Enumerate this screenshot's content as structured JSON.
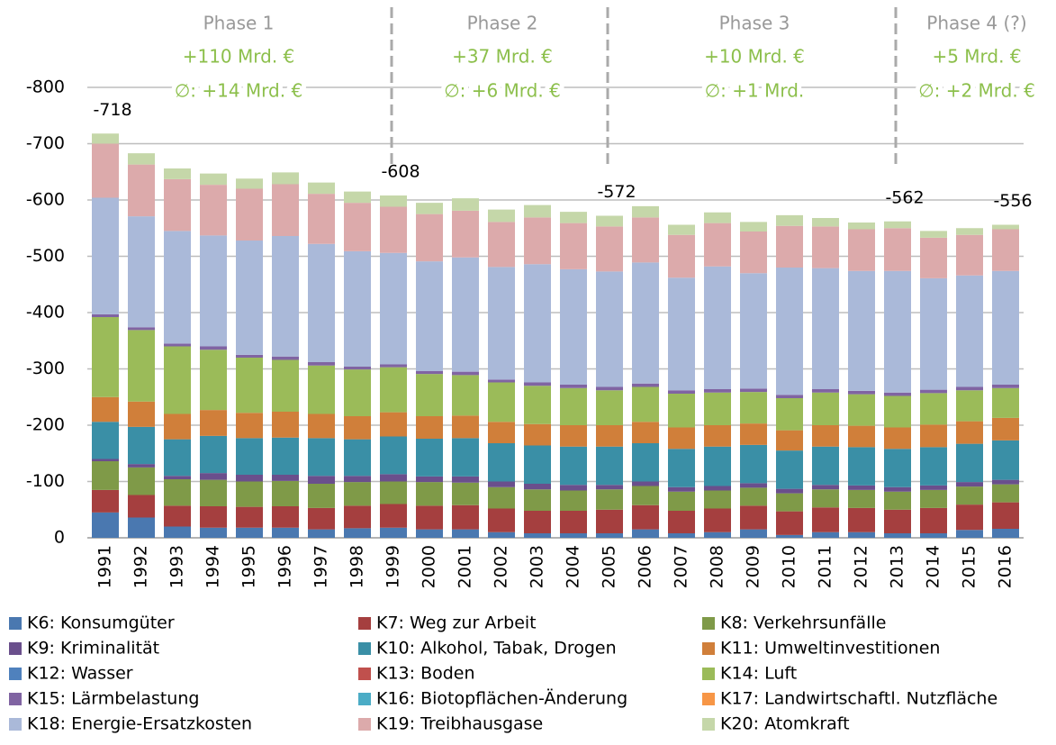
{
  "chart_data": {
    "type": "stacked_bar",
    "categories": [
      "1991",
      "1992",
      "1993",
      "1994",
      "1995",
      "1996",
      "1997",
      "1998",
      "1999",
      "2000",
      "2001",
      "2002",
      "2003",
      "2004",
      "2005",
      "2006",
      "2007",
      "2008",
      "2009",
      "2010",
      "2011",
      "2012",
      "2013",
      "2014",
      "2015",
      "2016"
    ],
    "ylim": [
      0,
      -800
    ],
    "yticks": [
      0,
      -100,
      -200,
      -300,
      -400,
      -500,
      -600,
      -700,
      -800
    ],
    "grid": true,
    "series": [
      {
        "name": "K6: Konsumgüter",
        "color": "#4a78b0",
        "values": [
          -45,
          -36,
          -20,
          -18,
          -18,
          -18,
          -15,
          -17,
          -18,
          -15,
          -15,
          -10,
          -8,
          -8,
          -8,
          -15,
          -8,
          -10,
          -15,
          -5,
          -10,
          -10,
          -8,
          -8,
          -14,
          -16
        ]
      },
      {
        "name": "K7: Weg zur Arbeit",
        "color": "#a53f3f",
        "values": [
          -40,
          -40,
          -37,
          -38,
          -37,
          -38,
          -38,
          -40,
          -42,
          -42,
          -43,
          -42,
          -40,
          -40,
          -42,
          -43,
          -40,
          -42,
          -42,
          -42,
          -44,
          -43,
          -42,
          -45,
          -45,
          -47
        ]
      },
      {
        "name": "K8: Verkehrsunfälle",
        "color": "#7f9a48",
        "values": [
          -51,
          -49,
          -47,
          -47,
          -45,
          -45,
          -43,
          -42,
          -40,
          -42,
          -40,
          -38,
          -38,
          -36,
          -36,
          -34,
          -34,
          -32,
          -32,
          -32,
          -32,
          -32,
          -32,
          -32,
          -32,
          -32
        ]
      },
      {
        "name": "K9: Kriminalität",
        "color": "#6a4f8c",
        "values": [
          -4,
          -6,
          -6,
          -12,
          -12,
          -11,
          -14,
          -11,
          -13,
          -10,
          -11,
          -10,
          -10,
          -10,
          -8,
          -8,
          -8,
          -8,
          -8,
          -8,
          -8,
          -8,
          -8,
          -8,
          -8,
          -8
        ]
      },
      {
        "name": "K10: Alkohol, Tabak, Drogen",
        "color": "#3a8fa6",
        "values": [
          -66,
          -66,
          -65,
          -66,
          -65,
          -66,
          -67,
          -65,
          -67,
          -67,
          -68,
          -68,
          -68,
          -68,
          -68,
          -68,
          -68,
          -70,
          -68,
          -68,
          -68,
          -68,
          -68,
          -68,
          -68,
          -70
        ]
      },
      {
        "name": "K11: Umweltinvestitionen",
        "color": "#d07f3a",
        "values": [
          -44,
          -45,
          -45,
          -46,
          -45,
          -46,
          -43,
          -41,
          -43,
          -40,
          -40,
          -38,
          -38,
          -38,
          -38,
          -38,
          -38,
          -38,
          -38,
          -36,
          -38,
          -38,
          -38,
          -40,
          -40,
          -40
        ]
      },
      {
        "name": "K12: Wasser",
        "color": "#4f81bd",
        "values": [
          0,
          0,
          0,
          0,
          0,
          0,
          0,
          0,
          0,
          0,
          0,
          0,
          0,
          0,
          0,
          0,
          0,
          0,
          0,
          0,
          0,
          0,
          0,
          0,
          0,
          0
        ]
      },
      {
        "name": "K13: Boden",
        "color": "#c0504d",
        "values": [
          0,
          0,
          0,
          0,
          0,
          0,
          0,
          0,
          0,
          0,
          0,
          0,
          0,
          0,
          0,
          0,
          0,
          0,
          0,
          0,
          0,
          0,
          0,
          0,
          0,
          0
        ]
      },
      {
        "name": "K14: Luft",
        "color": "#9bbb59",
        "values": [
          -142,
          -127,
          -120,
          -107,
          -98,
          -92,
          -86,
          -83,
          -80,
          -75,
          -72,
          -70,
          -68,
          -66,
          -62,
          -62,
          -60,
          -58,
          -56,
          -57,
          -58,
          -56,
          -56,
          -56,
          -55,
          -53
        ]
      },
      {
        "name": "K15: Lärmbelastung",
        "color": "#8064a2",
        "values": [
          -5,
          -5,
          -5,
          -6,
          -5,
          -6,
          -6,
          -5,
          -5,
          -5,
          -6,
          -5,
          -6,
          -6,
          -6,
          -6,
          -6,
          -6,
          -6,
          -6,
          -6,
          -6,
          -6,
          -6,
          -6,
          -6
        ]
      },
      {
        "name": "K16: Biotopflächen-Änderung",
        "color": "#4bacc6",
        "values": [
          0,
          0,
          0,
          0,
          0,
          0,
          0,
          0,
          0,
          0,
          0,
          0,
          0,
          0,
          0,
          0,
          0,
          0,
          0,
          0,
          0,
          0,
          0,
          0,
          0,
          0
        ]
      },
      {
        "name": "K17: Landwirtschaftl. Nutzfläche",
        "color": "#f79646",
        "values": [
          0,
          0,
          0,
          0,
          0,
          0,
          0,
          0,
          0,
          0,
          0,
          0,
          0,
          0,
          0,
          0,
          0,
          0,
          0,
          0,
          0,
          0,
          0,
          0,
          0,
          0
        ]
      },
      {
        "name": "K18: Energie-Ersatzkosten",
        "color": "#aab9d9",
        "values": [
          -207,
          -197,
          -200,
          -197,
          -203,
          -214,
          -210,
          -205,
          -198,
          -195,
          -203,
          -200,
          -210,
          -205,
          -205,
          -215,
          -200,
          -218,
          -205,
          -226,
          -215,
          -213,
          -216,
          -198,
          -198,
          -202
        ]
      },
      {
        "name": "K19: Treibhausgase",
        "color": "#dcaaab",
        "values": [
          -96,
          -92,
          -92,
          -90,
          -92,
          -92,
          -89,
          -86,
          -82,
          -84,
          -83,
          -80,
          -83,
          -82,
          -80,
          -80,
          -76,
          -77,
          -74,
          -74,
          -74,
          -74,
          -76,
          -72,
          -72,
          -74
        ]
      },
      {
        "name": "K20: Atomkraft",
        "color": "#c5d7a9",
        "values": [
          -18,
          -20,
          -19,
          -20,
          -18,
          -21,
          -20,
          -20,
          -20,
          -20,
          -22,
          -22,
          -22,
          -20,
          -19,
          -20,
          -18,
          -19,
          -17,
          -19,
          -15,
          -12,
          -12,
          -12,
          -12,
          -8
        ]
      }
    ],
    "annotations": [
      {
        "category": "1991",
        "value": -718
      },
      {
        "category": "1999",
        "value": -608
      },
      {
        "category": "2005",
        "value": -572
      },
      {
        "category": "2013",
        "value": -562
      },
      {
        "category": "2016",
        "value": -556
      }
    ],
    "phases": [
      {
        "label": "Phase 1",
        "total": "+110 Mrd. €",
        "average": "∅: +14 Mrd. €"
      },
      {
        "label": "Phase 2",
        "total": "+37 Mrd. €",
        "average": "∅: +6 Mrd. €"
      },
      {
        "label": "Phase 3",
        "total": "+10 Mrd. €",
        "average": "∅: +1 Mrd."
      },
      {
        "label": "Phase 4 (?)",
        "total": "+5 Mrd. €",
        "average": "∅: +2 Mrd. €"
      }
    ]
  }
}
